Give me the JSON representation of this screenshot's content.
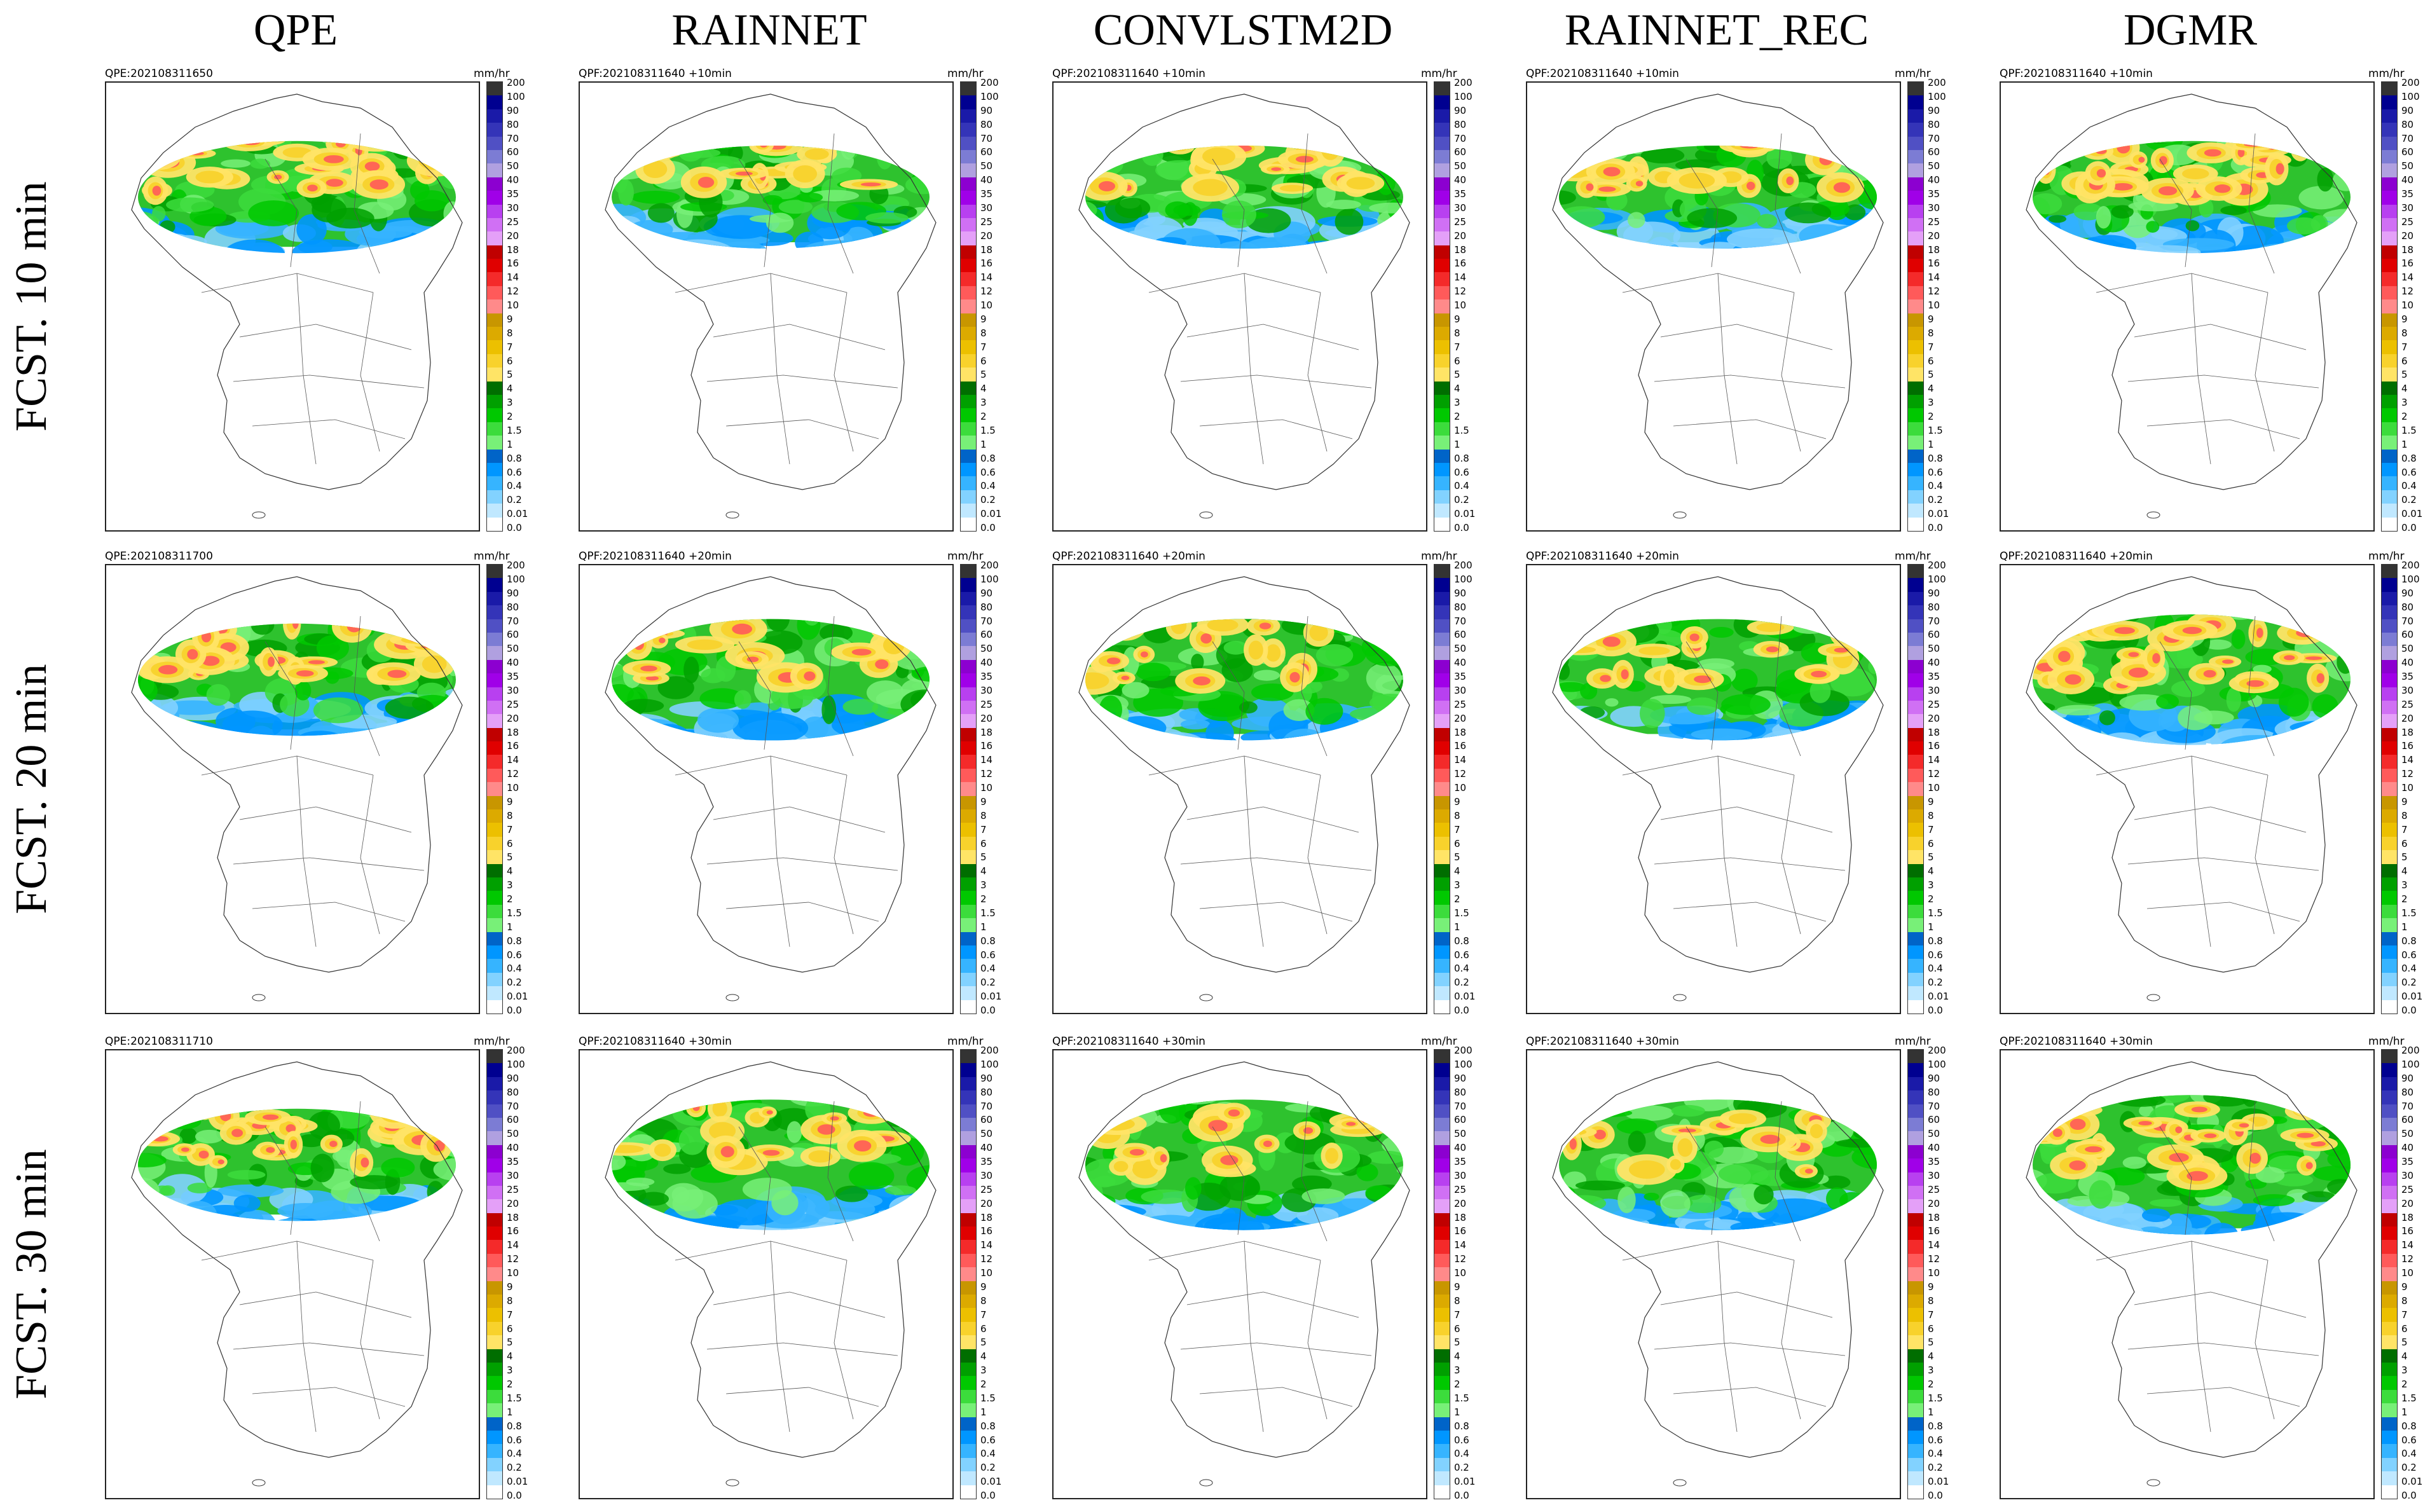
{
  "figure": {
    "column_headers": [
      "QPE",
      "RAINNET",
      "CONVLSTM2D",
      "RAINNET_REC",
      "DGMR"
    ],
    "row_headers": [
      "FCST. 10 min",
      "FCST. 20 min",
      "FCST. 30 min"
    ],
    "unit_label": "mm/hr",
    "colorbar_ticks": [
      "200",
      "100",
      "90",
      "80",
      "70",
      "60",
      "50",
      "40",
      "35",
      "30",
      "25",
      "20",
      "18",
      "16",
      "14",
      "12",
      "10",
      "9",
      "8",
      "7",
      "6",
      "5",
      "4",
      "3",
      "2",
      "1.5",
      "1",
      "0.8",
      "0.6",
      "0.4",
      "0.2",
      "0.01",
      "0.0"
    ],
    "colorbar_colors": [
      "#333333",
      "#000090",
      "#1a1aa8",
      "#3434b8",
      "#5050c4",
      "#7c7cd4",
      "#b0a0e0",
      "#8c00d0",
      "#a000e8",
      "#b840f0",
      "#d070f4",
      "#e4a0f8",
      "#c00000",
      "#e00000",
      "#f42a2a",
      "#ff5a5a",
      "#ff8a8a",
      "#c89600",
      "#dcaa00",
      "#ecc000",
      "#f8d22c",
      "#ffe466",
      "#006e00",
      "#00a000",
      "#00c800",
      "#3cdc3c",
      "#78f078",
      "#0064c8",
      "#0096ff",
      "#36b4ff",
      "#82d2ff",
      "#c0e8ff",
      "#ffffff"
    ],
    "rows": [
      {
        "stamps": [
          "QPE:202108311650",
          "QPF:202108311640 +10min",
          "QPF:202108311640 +10min",
          "QPF:202108311640 +10min",
          "QPF:202108311640 +10min"
        ],
        "rain_extent": [
          0.62,
          0.6,
          0.6,
          0.6,
          0.62
        ],
        "intensity": [
          0.9,
          0.6,
          0.62,
          0.66,
          0.95
        ]
      },
      {
        "stamps": [
          "QPE:202108311700",
          "QPF:202108311640 +20min",
          "QPF:202108311640 +20min",
          "QPF:202108311640 +20min",
          "QPF:202108311640 +20min"
        ],
        "rain_extent": [
          0.62,
          0.64,
          0.64,
          0.64,
          0.66
        ],
        "intensity": [
          0.88,
          0.58,
          0.58,
          0.6,
          0.95
        ]
      },
      {
        "stamps": [
          "QPE:202108311710",
          "QPF:202108311640 +30min",
          "QPF:202108311640 +30min",
          "QPF:202108311640 +30min",
          "QPF:202108311640 +30min"
        ],
        "rain_extent": [
          0.62,
          0.66,
          0.66,
          0.66,
          0.68
        ],
        "intensity": [
          0.86,
          0.56,
          0.56,
          0.62,
          0.95
        ]
      }
    ]
  }
}
